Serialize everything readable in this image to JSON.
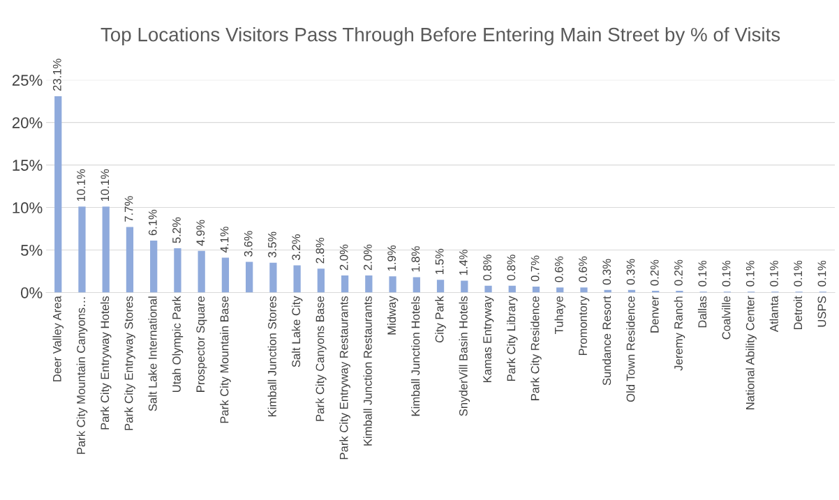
{
  "chart_data": {
    "type": "bar",
    "title": "Top Locations Visitors Pass Through Before Entering Main Street by % of Visits",
    "categories": [
      "Deer Valley Area",
      "Park City Mountain Canyons…",
      "Park City Entryway Hotels",
      "Park City Entryway Stores",
      "Salt Lake International",
      "Utah Olympic Park",
      "Prospector Square",
      "Park City Mountain Base",
      null,
      "Kimball Junction Stores",
      "Salt Lake City",
      "Park City Canyons Base",
      "Park City Entryway Restaurants",
      "Kimball Junction Restaurants",
      "Midway",
      "Kimball Junction Hotels",
      "City Park",
      "SnyderVill Basin Hotels",
      "Kamas Entryway",
      "Park City Library",
      "Park City Residence",
      "Tuhaye",
      "Promontory",
      "Sundance Resort",
      "Old Town Residence",
      "Denver",
      "Jeremy Ranch",
      "Dallas",
      "Coalville",
      "National Ability Center",
      "Atlanta",
      "Detroit",
      "USPS"
    ],
    "values": [
      23.1,
      10.1,
      10.1,
      7.7,
      6.1,
      5.2,
      4.9,
      4.1,
      3.6,
      3.5,
      3.2,
      2.8,
      2.0,
      2.0,
      1.9,
      1.8,
      1.5,
      1.4,
      0.8,
      0.8,
      0.7,
      0.6,
      0.6,
      0.3,
      0.3,
      0.2,
      0.2,
      0.1,
      0.1,
      0.1,
      0.1,
      0.1,
      0.1
    ],
    "value_labels": [
      "23.1%",
      "10.1%",
      "10.1%",
      "7.7%",
      "6.1%",
      "5.2%",
      "4.9%",
      "4.1%",
      "3.6%",
      "3.5%",
      "3.2%",
      "2.8%",
      "2.0%",
      "2.0%",
      "1.9%",
      "1.8%",
      "1.5%",
      "1.4%",
      "0.8%",
      "0.8%",
      "0.7%",
      "0.6%",
      "0.6%",
      "0.3%",
      "0.3%",
      "0.2%",
      "0.2%",
      "0.1%",
      "0.1%",
      "0.1%",
      "0.1%",
      "0.1%",
      "0.1%"
    ],
    "color": "#8faadc",
    "ylim": [
      0,
      25
    ],
    "yticks": [
      {
        "value": 0,
        "label": "0%"
      },
      {
        "value": 5,
        "label": "5%"
      },
      {
        "value": 10,
        "label": "10%"
      },
      {
        "value": 15,
        "label": "15%"
      },
      {
        "value": 20,
        "label": "20%"
      },
      {
        "value": 25,
        "label": "25%"
      }
    ],
    "grid": "y",
    "legend": false
  }
}
